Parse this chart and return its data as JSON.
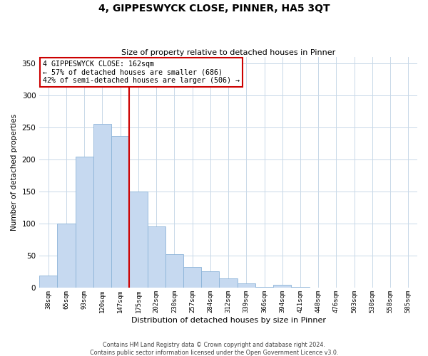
{
  "title": "4, GIPPESWYCK CLOSE, PINNER, HA5 3QT",
  "subtitle": "Size of property relative to detached houses in Pinner",
  "xlabel": "Distribution of detached houses by size in Pinner",
  "ylabel": "Number of detached properties",
  "bar_labels": [
    "38sqm",
    "65sqm",
    "93sqm",
    "120sqm",
    "147sqm",
    "175sqm",
    "202sqm",
    "230sqm",
    "257sqm",
    "284sqm",
    "312sqm",
    "339sqm",
    "366sqm",
    "394sqm",
    "421sqm",
    "448sqm",
    "476sqm",
    "503sqm",
    "530sqm",
    "558sqm",
    "585sqm"
  ],
  "bar_values": [
    19,
    100,
    204,
    256,
    237,
    150,
    96,
    53,
    33,
    26,
    15,
    7,
    2,
    5,
    2,
    1,
    0,
    0,
    0,
    0,
    1
  ],
  "bar_color": "#c6d9f0",
  "bar_edge_color": "#8cb4d8",
  "vline_x": 4.5,
  "vline_color": "#cc0000",
  "annotation_line1": "4 GIPPESWYCK CLOSE: 162sqm",
  "annotation_line2": "← 57% of detached houses are smaller (686)",
  "annotation_line3": "42% of semi-detached houses are larger (506) →",
  "ylim": [
    0,
    360
  ],
  "yticks": [
    0,
    50,
    100,
    150,
    200,
    250,
    300,
    350
  ],
  "footer_line1": "Contains HM Land Registry data © Crown copyright and database right 2024.",
  "footer_line2": "Contains public sector information licensed under the Open Government Licence v3.0.",
  "background_color": "#ffffff",
  "grid_color": "#c8d8e8"
}
